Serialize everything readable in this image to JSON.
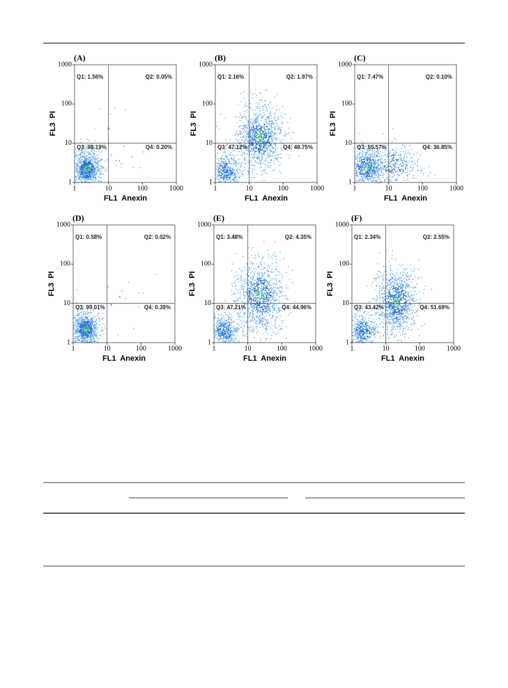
{
  "figure": {
    "xlabel": "FL1  Anexin",
    "ylabel": "FL3  PI",
    "xticks": [
      1,
      10,
      100,
      1000
    ],
    "yticks": [
      1,
      10,
      100,
      1000
    ],
    "panels": [
      {
        "label": "(A)",
        "quadrants": [
          "Q1: 1.56%",
          "Q2: 0.05%",
          "Q3: 98.19%",
          "Q4: 0.20%"
        ]
      },
      {
        "label": "(B)",
        "quadrants": [
          "Q1: 2.16%",
          "Q2: 1.97%",
          "Q3: 47.12%",
          "Q4: 48.75%"
        ]
      },
      {
        "label": "(C)",
        "quadrants": [
          "Q1: 7.47%",
          "Q2: 0.10%",
          "Q3: 55.57%",
          "Q4: 36.85%"
        ]
      },
      {
        "label": "(D)",
        "quadrants": [
          "Q1: 0.58%",
          "Q2: 0.02%",
          "Q3: 99.01%",
          "Q4: 0.39%"
        ]
      },
      {
        "label": "(E)",
        "quadrants": [
          "Q1: 3.48%",
          "Q2: 4.35%",
          "Q3: 47.21%",
          "Q4: 44.96%"
        ]
      },
      {
        "label": "(F)",
        "quadrants": [
          "Q1: 2.34%",
          "Q2: 2.55%",
          "Q3: 43.42%",
          "Q4: 51.69%"
        ]
      }
    ]
  }
}
